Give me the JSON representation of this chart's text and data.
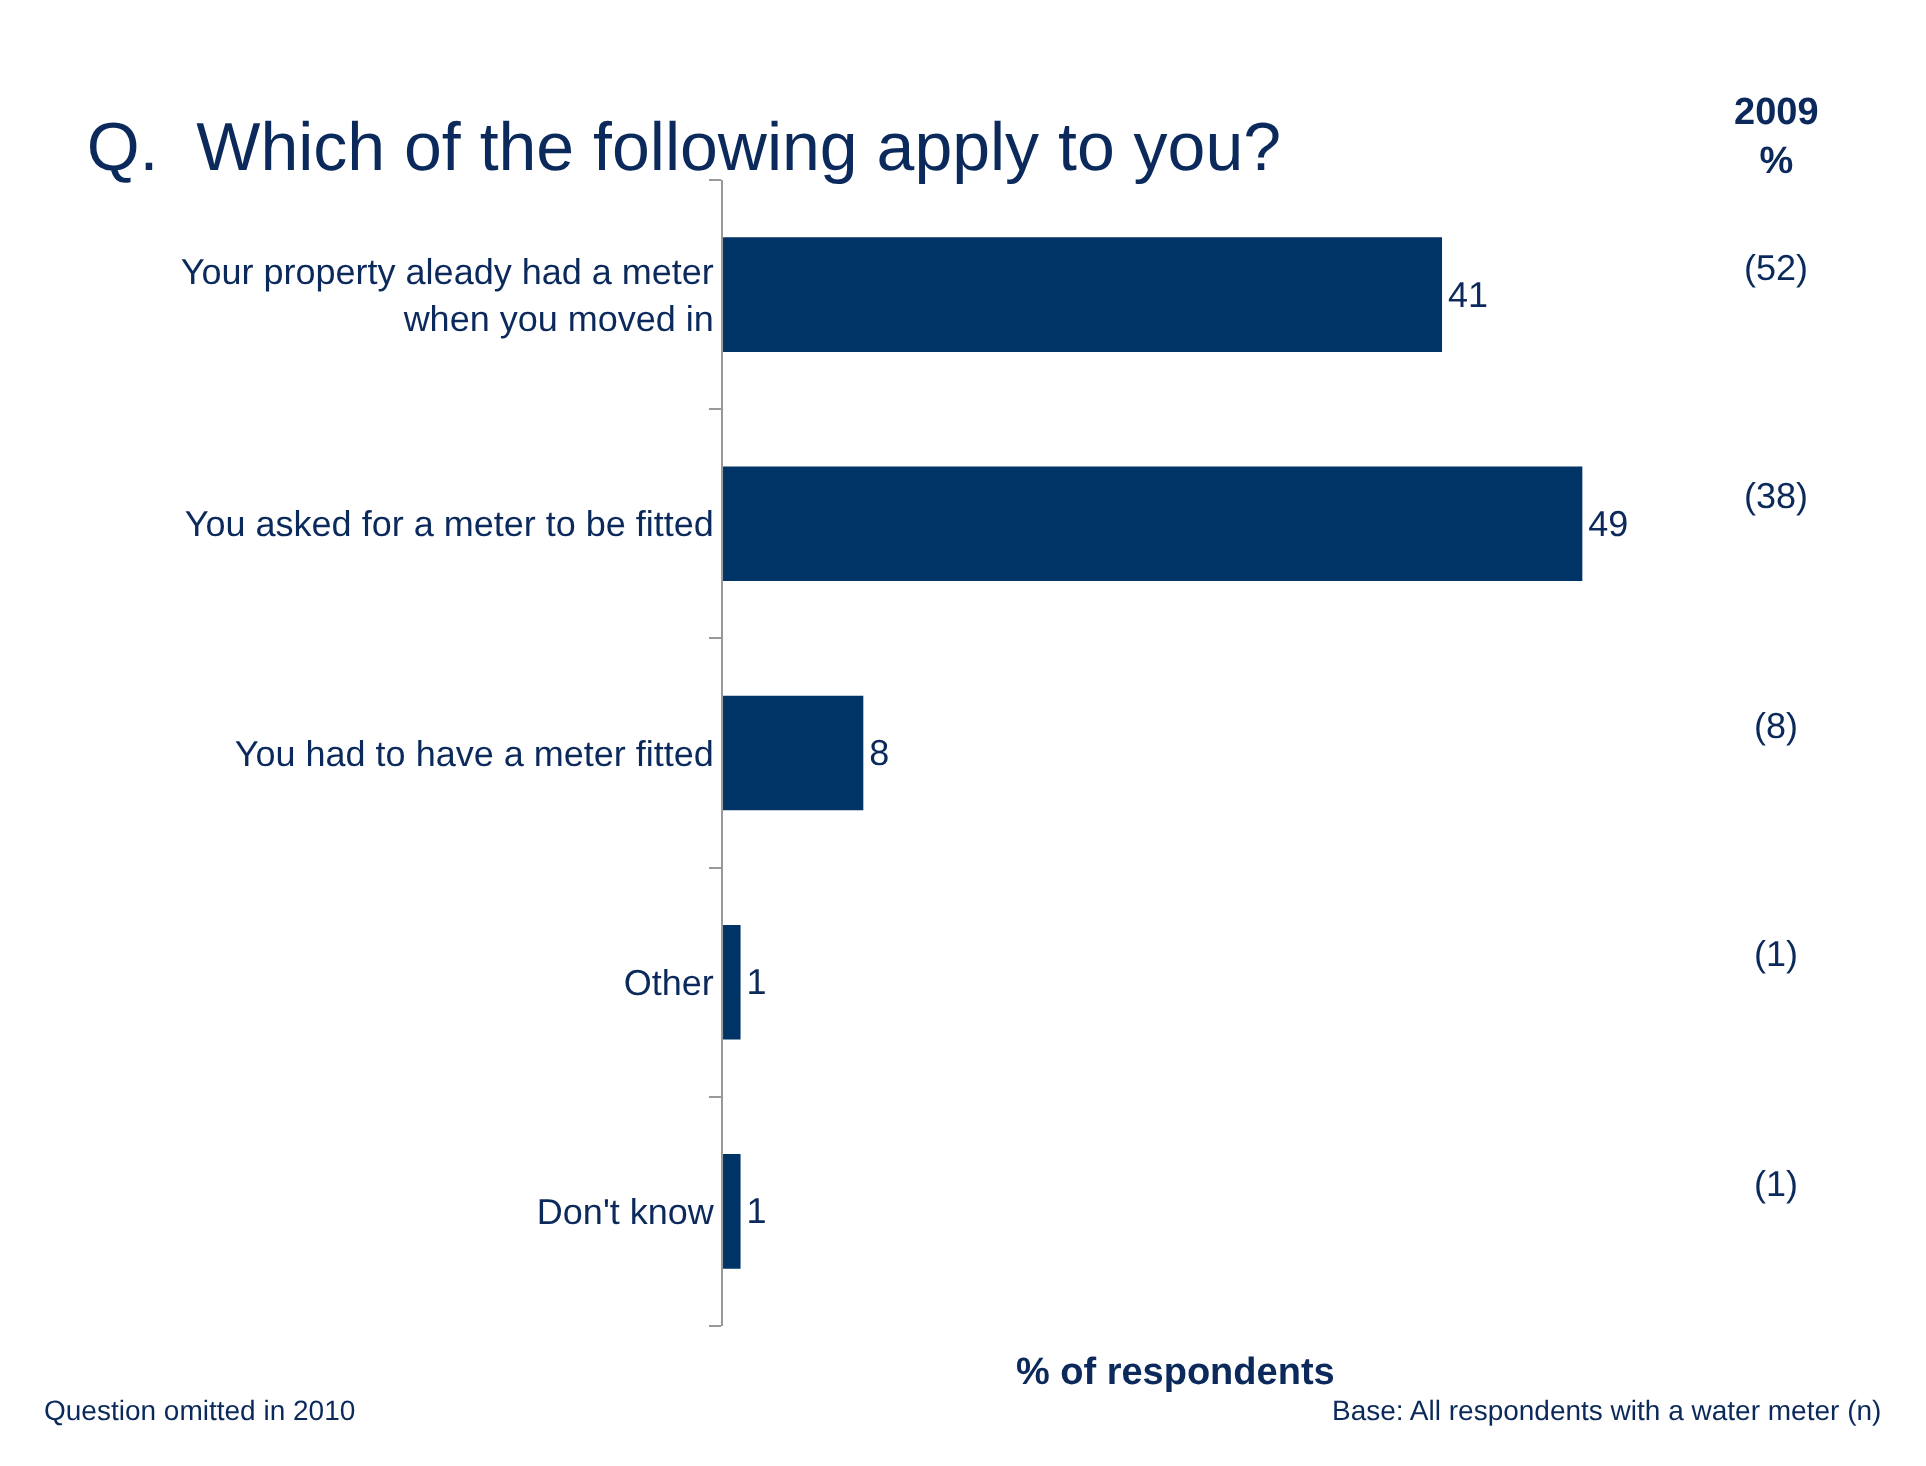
{
  "chart_data": {
    "type": "bar",
    "orientation": "horizontal",
    "title": "Q.  Which of the following apply to you?",
    "xlabel": "% of respondents",
    "categories": [
      "Your property aleady had a meter when you moved in",
      "You asked for a meter to be fitted",
      "You had to have a meter fitted",
      "Other",
      "Don't know"
    ],
    "values": [
      41,
      49,
      8,
      1,
      1
    ],
    "color": "#003366",
    "data_labels": true,
    "annotations": [
      "2009\n%",
      "Question omitted in 2010",
      "Base: All respondents with a water meter (n)",
      "(52)",
      "(38)",
      "(8)",
      "(1)",
      "(1)"
    ]
  }
}
